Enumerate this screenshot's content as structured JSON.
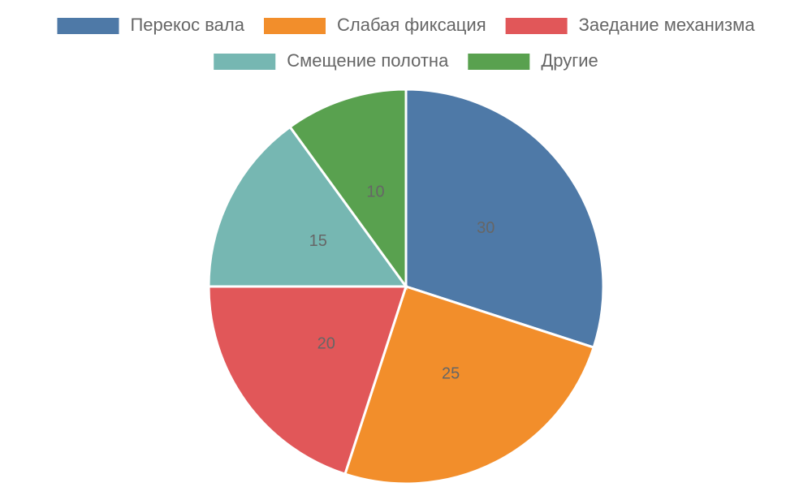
{
  "chart_data": {
    "type": "pie",
    "categories": [
      "Перекос вала",
      "Слабая фиксация",
      "Заедание механизма",
      "Смещение полотна",
      "Другие"
    ],
    "values": [
      30,
      25,
      20,
      15,
      10
    ],
    "colors": [
      "#4e79a7",
      "#f28e2b",
      "#e15759",
      "#76b7b2",
      "#59a14f"
    ],
    "legend": "top"
  }
}
